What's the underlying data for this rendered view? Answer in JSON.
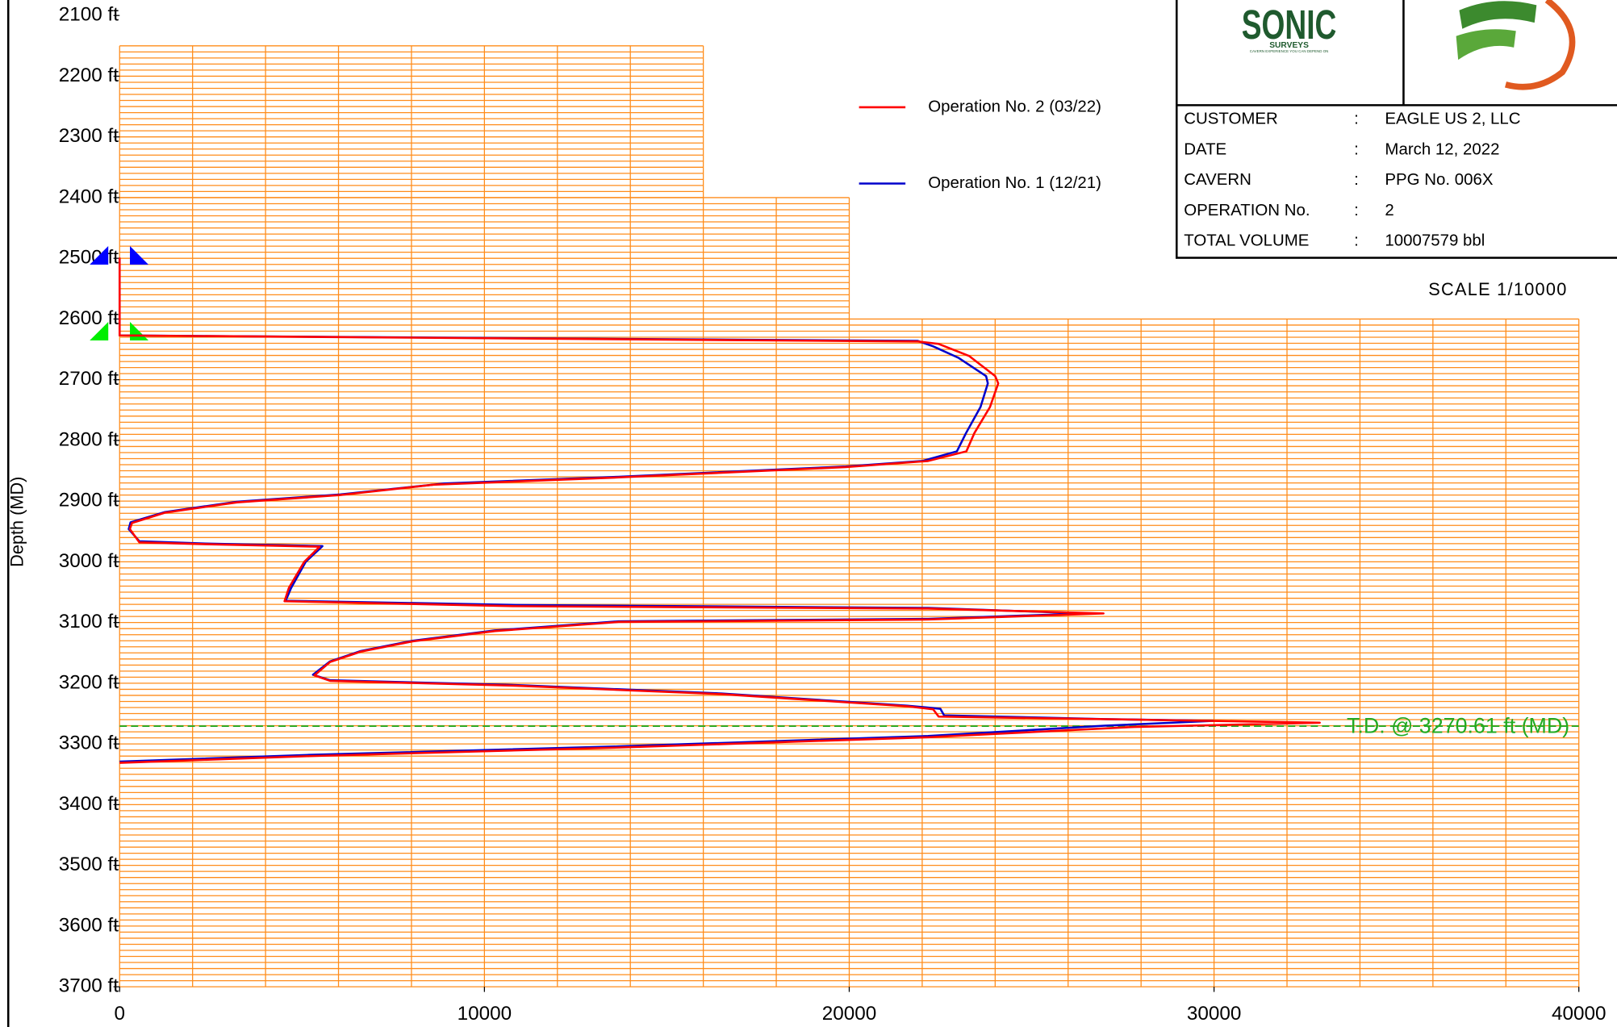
{
  "chart_data": {
    "type": "line",
    "y_label": "Depth (MD)",
    "xlim": [
      0,
      40000
    ],
    "xticks": [
      0,
      10000,
      20000,
      30000,
      40000
    ],
    "ylim": [
      2100,
      3700
    ],
    "y_reversed": true,
    "yticks": [
      {
        "value": 2100,
        "label": "2100 ft"
      },
      {
        "value": 2200,
        "label": "2200 ft"
      },
      {
        "value": 2300,
        "label": "2300 ft"
      },
      {
        "value": 2400,
        "label": "2400 ft"
      },
      {
        "value": 2500,
        "label": "2500 ft"
      },
      {
        "value": 2600,
        "label": "2600 ft"
      },
      {
        "value": 2700,
        "label": "2700 ft"
      },
      {
        "value": 2800,
        "label": "2800 ft"
      },
      {
        "value": 2900,
        "label": "2900 ft"
      },
      {
        "value": 3000,
        "label": "3000 ft"
      },
      {
        "value": 3100,
        "label": "3100 ft"
      },
      {
        "value": 3200,
        "label": "3200 ft"
      },
      {
        "value": 3300,
        "label": "3300 ft"
      },
      {
        "value": 3400,
        "label": "3400 ft"
      },
      {
        "value": 3500,
        "label": "3500 ft"
      },
      {
        "value": 3600,
        "label": "3600 ft"
      },
      {
        "value": 3700,
        "label": "3700 ft"
      }
    ],
    "grid": true,
    "grid_color": "#ff8c1a",
    "grid_step_x": 2000,
    "grid_step_y": 10,
    "grid_regions": [
      {
        "from": 2150,
        "to": 2400,
        "xmax": 16000
      },
      {
        "from": 2400,
        "to": 2600,
        "xmax": 20000
      },
      {
        "from": 2600,
        "to": 3700,
        "xmax": 40000
      }
    ],
    "markers": [
      {
        "depth": 2490,
        "color": "#0000ff"
      },
      {
        "depth": 2615,
        "color": "#00ee00"
      }
    ],
    "td_depth": 3270.61,
    "td_label": "T.D. @ 3270.61 ft (MD)",
    "td_color": "#22aa22",
    "scale_label": "SCALE 1/10000",
    "series": [
      {
        "name": "Operation No. 2 (03/22)",
        "color": "#ff0000",
        "x": [
          0,
          0,
          21880,
          22450,
          23290,
          24000,
          24085,
          23860,
          23430,
          23210,
          22160,
          19900,
          13680,
          8590,
          6050,
          3220,
          1240,
          340,
          280,
          540,
          2370,
          5480,
          5060,
          4640,
          4520,
          10860,
          22160,
          26970,
          22160,
          13680,
          10290,
          8030,
          6610,
          5770,
          5340,
          5770,
          10860,
          16510,
          21600,
          22300,
          22450,
          27820,
          32900,
          27820,
          22160,
          13680,
          5200,
          0
        ],
        "values": [
          2499,
          2627,
          2637,
          2641,
          2661,
          2694,
          2706,
          2745,
          2788,
          2818,
          2834,
          2844,
          2861,
          2873,
          2890,
          2902,
          2919,
          2936,
          2946,
          2968,
          2971,
          2975,
          3000,
          3043,
          3065,
          3073,
          3077,
          3085,
          3095,
          3099,
          3114,
          3131,
          3148,
          3165,
          3187,
          3196,
          3204,
          3218,
          3238,
          3243,
          3255,
          3260,
          3265,
          3272,
          3289,
          3306,
          3320,
          3331
        ]
      },
      {
        "name": "Operation No. 1 (12/21)",
        "color": "#0000cc",
        "x": [
          0,
          0,
          21880,
          22300,
          23000,
          23750,
          23800,
          23600,
          23200,
          22950,
          22000,
          19900,
          13680,
          8900,
          6050,
          3220,
          1240,
          300,
          250,
          540,
          2370,
          5560,
          5100,
          4700,
          4550,
          10860,
          22160,
          26500,
          22160,
          13680,
          10290,
          8030,
          6610,
          5770,
          5300,
          5770,
          10860,
          16510,
          21600,
          22500,
          22600,
          27000,
          30000,
          27000,
          22160,
          13680,
          5200,
          0
        ],
        "values": [
          2499,
          2627,
          2636,
          2645,
          2664,
          2694,
          2706,
          2745,
          2788,
          2818,
          2834,
          2843,
          2860,
          2871,
          2889,
          2901,
          2918,
          2935,
          2946,
          2966,
          2970,
          2974,
          3000,
          3043,
          3064,
          3071,
          3076,
          3085,
          3094,
          3098,
          3113,
          3130,
          3147,
          3164,
          3186,
          3195,
          3203,
          3217,
          3237,
          3242,
          3253,
          3259,
          3262,
          3270,
          3287,
          3304,
          3318,
          3329
        ]
      }
    ]
  },
  "logo": {
    "name": "SONIC",
    "sub": "SURVEYS",
    "tagline": "CAVERN EXPERIENCE YOU CAN DEPEND ON"
  },
  "info": {
    "rows": [
      [
        "CUSTOMER",
        ":",
        "EAGLE US 2, LLC"
      ],
      [
        "DATE",
        ":",
        "March 12, 2022"
      ],
      [
        "CAVERN",
        ":",
        "PPG No. 006X"
      ],
      [
        "OPERATION No.",
        ":",
        "2"
      ],
      [
        "TOTAL VOLUME",
        ":",
        "10007579 bbl"
      ]
    ]
  }
}
